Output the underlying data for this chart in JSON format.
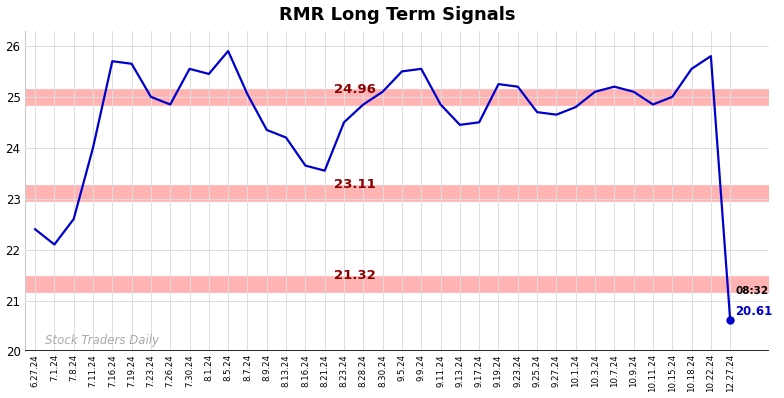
{
  "title": "RMR Long Term Signals",
  "watermark": "Stock Traders Daily",
  "hlines": [
    {
      "y": 25.0,
      "color": "#ffb3b3",
      "lw": 12
    },
    {
      "y": 23.11,
      "color": "#ffb3b3",
      "lw": 12
    },
    {
      "y": 21.32,
      "color": "#ffb3b3",
      "lw": 12
    }
  ],
  "hline_labels": [
    {
      "y": 24.96,
      "text": "24.96"
    },
    {
      "y": 23.11,
      "text": "23.11"
    },
    {
      "y": 21.32,
      "text": "21.32"
    }
  ],
  "last_label_time": "08:32",
  "last_label_price": "20.61",
  "ylim": [
    20,
    26.3
  ],
  "yticks": [
    20,
    21,
    22,
    23,
    24,
    25,
    26
  ],
  "line_color": "#0000cc",
  "line_width": 1.6,
  "dot_color": "#0000cc",
  "background_color": "#ffffff",
  "grid_color": "#dddddd",
  "x_labels": [
    "6.27.24",
    "7.1.24",
    "7.8.24",
    "7.11.24",
    "7.16.24",
    "7.19.24",
    "7.23.24",
    "7.26.24",
    "7.30.24",
    "8.1.24",
    "8.5.24",
    "8.7.24",
    "8.9.24",
    "8.13.24",
    "8.16.24",
    "8.21.24",
    "8.23.24",
    "8.28.24",
    "8.30.24",
    "9.5.24",
    "9.9.24",
    "9.11.24",
    "9.13.24",
    "9.17.24",
    "9.19.24",
    "9.23.24",
    "9.25.24",
    "9.27.24",
    "10.1.24",
    "10.3.24",
    "10.7.24",
    "10.9.24",
    "10.11.24",
    "10.15.24",
    "10.18.24",
    "10.22.24",
    "12.27.24"
  ],
  "y_values": [
    22.4,
    22.1,
    22.6,
    24.0,
    25.7,
    25.65,
    25.0,
    24.85,
    25.55,
    25.45,
    25.9,
    25.05,
    24.35,
    24.2,
    23.65,
    23.55,
    24.5,
    24.85,
    25.1,
    25.5,
    25.55,
    24.85,
    24.45,
    24.5,
    25.25,
    25.2,
    24.7,
    24.65,
    24.8,
    25.1,
    25.2,
    25.1,
    24.85,
    25.0,
    25.55,
    25.8,
    20.61
  ]
}
